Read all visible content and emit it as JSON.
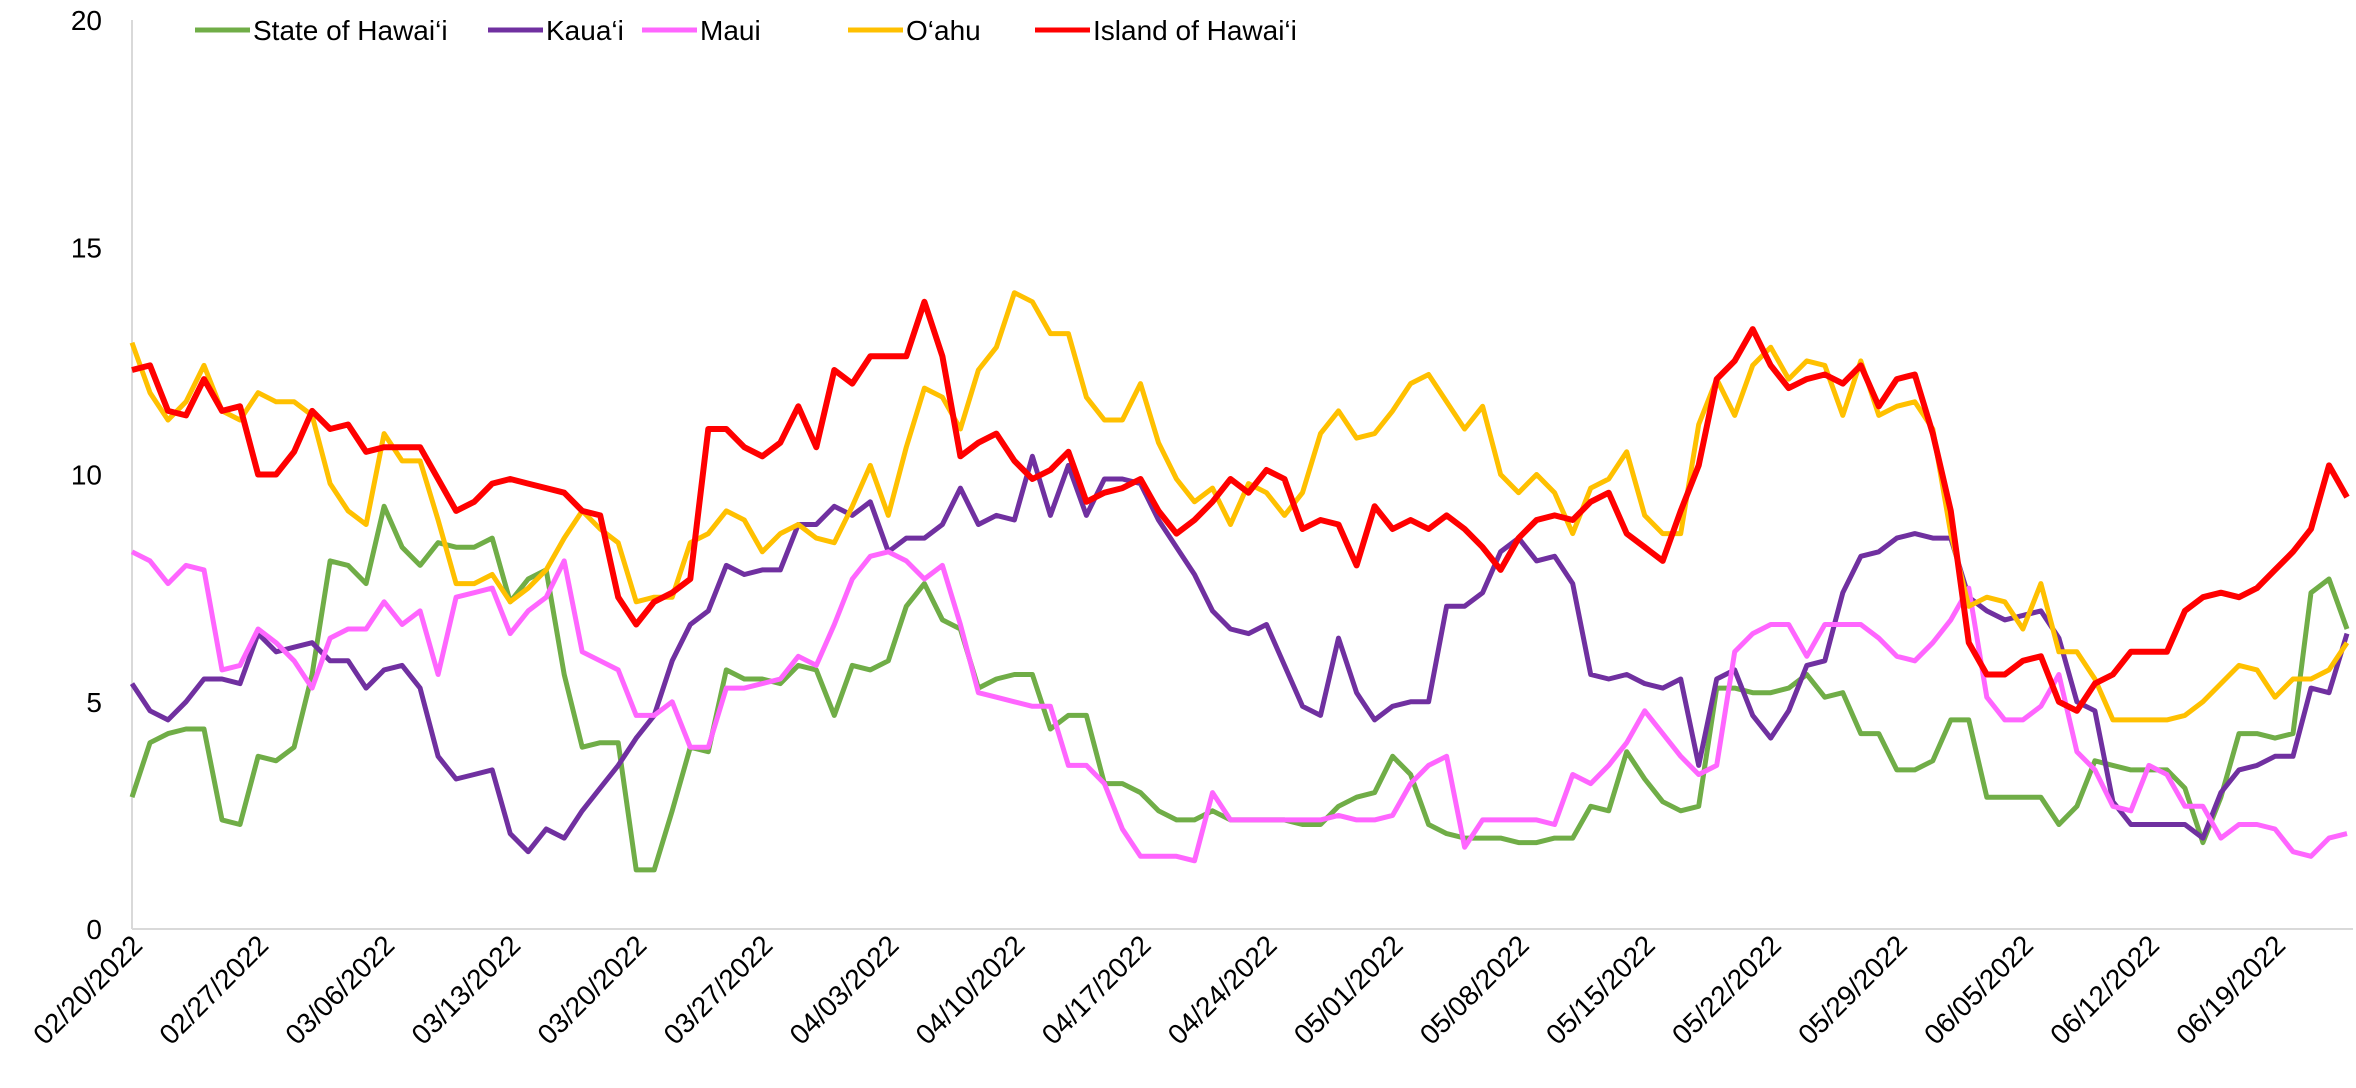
{
  "chart_data": {
    "type": "line",
    "categories": [
      "02/20/2022",
      null,
      null,
      null,
      null,
      null,
      null,
      "02/27/2022",
      null,
      null,
      null,
      null,
      null,
      null,
      "03/06/2022",
      null,
      null,
      null,
      null,
      null,
      null,
      "03/13/2022",
      null,
      null,
      null,
      null,
      null,
      null,
      "03/20/2022",
      null,
      null,
      null,
      null,
      null,
      null,
      "03/27/2022",
      null,
      null,
      null,
      null,
      null,
      null,
      "04/03/2022",
      null,
      null,
      null,
      null,
      null,
      null,
      "04/10/2022",
      null,
      null,
      null,
      null,
      null,
      null,
      "04/17/2022",
      null,
      null,
      null,
      null,
      null,
      null,
      "04/24/2022",
      null,
      null,
      null,
      null,
      null,
      null,
      "05/01/2022",
      null,
      null,
      null,
      null,
      null,
      null,
      "05/08/2022",
      null,
      null,
      null,
      null,
      null,
      null,
      "05/15/2022",
      null,
      null,
      null,
      null,
      null,
      null,
      "05/22/2022",
      null,
      null,
      null,
      null,
      null,
      null,
      "05/29/2022",
      null,
      null,
      null,
      null,
      null,
      null,
      "06/05/2022",
      null,
      null,
      null,
      null,
      null,
      null,
      "06/12/2022",
      null,
      null,
      null,
      null,
      null,
      null,
      "06/19/2022",
      null,
      null,
      null,
      null
    ],
    "series": [
      {
        "name": "State of Hawai‘i",
        "color": "#70ad47",
        "values": [
          2.9,
          4.1,
          4.3,
          4.4,
          4.4,
          2.4,
          2.3,
          3.8,
          3.7,
          4.0,
          5.6,
          8.1,
          8.0,
          7.6,
          9.3,
          8.4,
          8.0,
          8.5,
          8.4,
          8.4,
          8.6,
          7.2,
          7.7,
          7.9,
          5.6,
          4.0,
          4.1,
          4.1,
          1.3,
          1.3,
          2.6,
          4.0,
          3.9,
          5.7,
          5.5,
          5.5,
          5.4,
          5.8,
          5.7,
          4.7,
          5.8,
          5.7,
          5.9,
          7.1,
          7.6,
          6.8,
          6.6,
          5.3,
          5.5,
          5.6,
          5.6,
          4.4,
          4.7,
          4.7,
          3.2,
          3.2,
          3.0,
          2.6,
          2.4,
          2.4,
          2.6,
          2.4,
          2.4,
          2.4,
          2.4,
          2.3,
          2.3,
          2.7,
          2.9,
          3.0,
          3.8,
          3.4,
          2.3,
          2.1,
          2.0,
          2.0,
          2.0,
          1.9,
          1.9,
          2.0,
          2.0,
          2.7,
          2.6,
          3.9,
          3.3,
          2.8,
          2.6,
          2.7,
          5.3,
          5.3,
          5.2,
          5.2,
          5.3,
          5.6,
          5.1,
          5.2,
          4.3,
          4.3,
          3.5,
          3.5,
          3.7,
          4.6,
          4.6,
          2.9,
          2.9,
          2.9,
          2.9,
          2.3,
          2.7,
          3.7,
          3.6,
          3.5,
          3.5,
          3.5,
          3.1,
          1.9,
          2.9,
          4.3,
          4.3,
          4.2,
          4.3,
          7.4,
          7.7,
          6.6
        ]
      },
      {
        "name": "Kaua‘i",
        "color": "#7030a0",
        "values": [
          5.4,
          4.8,
          4.6,
          5.0,
          5.5,
          5.5,
          5.4,
          6.5,
          6.1,
          6.2,
          6.3,
          5.9,
          5.9,
          5.3,
          5.7,
          5.8,
          5.3,
          3.8,
          3.3,
          3.4,
          3.5,
          2.1,
          1.7,
          2.2,
          2.0,
          2.6,
          3.1,
          3.6,
          4.2,
          4.7,
          5.9,
          6.7,
          7.0,
          8.0,
          7.8,
          7.9,
          7.9,
          8.9,
          8.9,
          9.3,
          9.1,
          9.4,
          8.3,
          8.6,
          8.6,
          8.9,
          9.7,
          8.9,
          9.1,
          9.0,
          10.4,
          9.1,
          10.2,
          9.1,
          9.9,
          9.9,
          9.8,
          9.0,
          8.4,
          7.8,
          7.0,
          6.6,
          6.5,
          6.7,
          5.8,
          4.9,
          4.7,
          6.4,
          5.2,
          4.6,
          4.9,
          5.0,
          5.0,
          7.1,
          7.1,
          7.4,
          8.3,
          8.6,
          8.1,
          8.2,
          7.6,
          5.6,
          5.5,
          5.6,
          5.4,
          5.3,
          5.5,
          3.6,
          5.5,
          5.7,
          4.7,
          4.2,
          4.8,
          5.8,
          5.9,
          7.4,
          8.2,
          8.3,
          8.6,
          8.7,
          8.6,
          8.6,
          7.3,
          7.0,
          6.8,
          6.9,
          7.0,
          6.4,
          5.0,
          4.8,
          2.8,
          2.3,
          2.3,
          2.3,
          2.3,
          2.0,
          3.0,
          3.5,
          3.6,
          3.8,
          3.8,
          5.3,
          5.2,
          6.5
        ]
      },
      {
        "name": "Maui",
        "color": "#ff66ff",
        "values": [
          8.3,
          8.1,
          7.6,
          8.0,
          7.9,
          5.7,
          5.8,
          6.6,
          6.3,
          5.9,
          5.3,
          6.4,
          6.6,
          6.6,
          7.2,
          6.7,
          7.0,
          5.6,
          7.3,
          7.4,
          7.5,
          6.5,
          7.0,
          7.3,
          8.1,
          6.1,
          5.9,
          5.7,
          4.7,
          4.7,
          5.0,
          4.0,
          4.0,
          5.3,
          5.3,
          5.4,
          5.5,
          6.0,
          5.8,
          6.7,
          7.7,
          8.2,
          8.3,
          8.1,
          7.7,
          8.0,
          6.7,
          5.2,
          5.1,
          5.0,
          4.9,
          4.9,
          3.6,
          3.6,
          3.2,
          2.2,
          1.6,
          1.6,
          1.6,
          1.5,
          3.0,
          2.4,
          2.4,
          2.4,
          2.4,
          2.4,
          2.4,
          2.5,
          2.4,
          2.4,
          2.5,
          3.2,
          3.6,
          3.8,
          1.8,
          2.4,
          2.4,
          2.4,
          2.4,
          2.3,
          3.4,
          3.2,
          3.6,
          4.1,
          4.8,
          4.3,
          3.8,
          3.4,
          3.6,
          6.1,
          6.5,
          6.7,
          6.7,
          6.0,
          6.7,
          6.7,
          6.7,
          6.4,
          6.0,
          5.9,
          6.3,
          6.8,
          7.5,
          5.1,
          4.6,
          4.6,
          4.9,
          5.6,
          3.9,
          3.5,
          2.7,
          2.6,
          3.6,
          3.4,
          2.7,
          2.7,
          2.0,
          2.3,
          2.3,
          2.2,
          1.7,
          1.6,
          2.0,
          2.1
        ]
      },
      {
        "name": "O‘ahu",
        "color": "#ffc000",
        "values": [
          12.9,
          11.8,
          11.2,
          11.6,
          12.4,
          11.4,
          11.2,
          11.8,
          11.6,
          11.6,
          11.3,
          9.8,
          9.2,
          8.9,
          10.9,
          10.3,
          10.3,
          9.0,
          7.6,
          7.6,
          7.8,
          7.2,
          7.5,
          7.9,
          8.6,
          9.2,
          8.8,
          8.5,
          7.2,
          7.3,
          7.3,
          8.5,
          8.7,
          9.2,
          9.0,
          8.3,
          8.7,
          8.9,
          8.6,
          8.5,
          9.3,
          10.2,
          9.1,
          10.6,
          11.9,
          11.7,
          11.0,
          12.3,
          12.8,
          14.0,
          13.8,
          13.1,
          13.1,
          11.7,
          11.2,
          11.2,
          12.0,
          10.7,
          9.9,
          9.4,
          9.7,
          8.9,
          9.8,
          9.6,
          9.1,
          9.6,
          10.9,
          11.4,
          10.8,
          10.9,
          11.4,
          12.0,
          12.2,
          11.6,
          11.0,
          11.5,
          10.0,
          9.6,
          10.0,
          9.6,
          8.7,
          9.7,
          9.9,
          10.5,
          9.1,
          8.7,
          8.7,
          11.1,
          12.1,
          11.3,
          12.4,
          12.8,
          12.1,
          12.5,
          12.4,
          11.3,
          12.5,
          11.3,
          11.5,
          11.6,
          11.0,
          8.7,
          7.1,
          7.3,
          7.2,
          6.6,
          7.6,
          6.1,
          6.1,
          5.5,
          4.6,
          4.6,
          4.6,
          4.6,
          4.7,
          5.0,
          5.4,
          5.8,
          5.7,
          5.1,
          5.5,
          5.5,
          5.7,
          6.3
        ]
      },
      {
        "name": "Island of Hawai‘i",
        "color": "#ff0000",
        "values": [
          12.3,
          12.4,
          11.4,
          11.3,
          12.1,
          11.4,
          11.5,
          10.0,
          10.0,
          10.5,
          11.4,
          11.0,
          11.1,
          10.5,
          10.6,
          10.6,
          10.6,
          9.9,
          9.2,
          9.4,
          9.8,
          9.9,
          9.8,
          9.7,
          9.6,
          9.2,
          9.1,
          7.3,
          6.7,
          7.2,
          7.4,
          7.7,
          11.0,
          11.0,
          10.6,
          10.4,
          10.7,
          11.5,
          10.6,
          12.3,
          12.0,
          12.6,
          12.6,
          12.6,
          13.8,
          12.6,
          10.4,
          10.7,
          10.9,
          10.3,
          9.9,
          10.1,
          10.5,
          9.4,
          9.6,
          9.7,
          9.9,
          9.2,
          8.7,
          9.0,
          9.4,
          9.9,
          9.6,
          10.1,
          9.9,
          8.8,
          9.0,
          8.9,
          8.0,
          9.3,
          8.8,
          9.0,
          8.8,
          9.1,
          8.8,
          8.4,
          7.9,
          8.6,
          9.0,
          9.1,
          9.0,
          9.4,
          9.6,
          8.7,
          8.4,
          8.1,
          9.2,
          10.2,
          12.1,
          12.5,
          13.2,
          12.4,
          11.9,
          12.1,
          12.2,
          12.0,
          12.4,
          11.5,
          12.1,
          12.2,
          10.9,
          9.2,
          6.3,
          5.6,
          5.6,
          5.9,
          6.0,
          5.0,
          4.8,
          5.4,
          5.6,
          6.1,
          6.1,
          6.1,
          7.0,
          7.3,
          7.4,
          7.3,
          7.5,
          7.9,
          8.3,
          8.8,
          10.2,
          9.5
        ]
      }
    ],
    "ylim": [
      0,
      20
    ],
    "yticks": [
      0,
      5,
      10,
      15,
      20
    ],
    "grid": false,
    "legend": "top"
  }
}
